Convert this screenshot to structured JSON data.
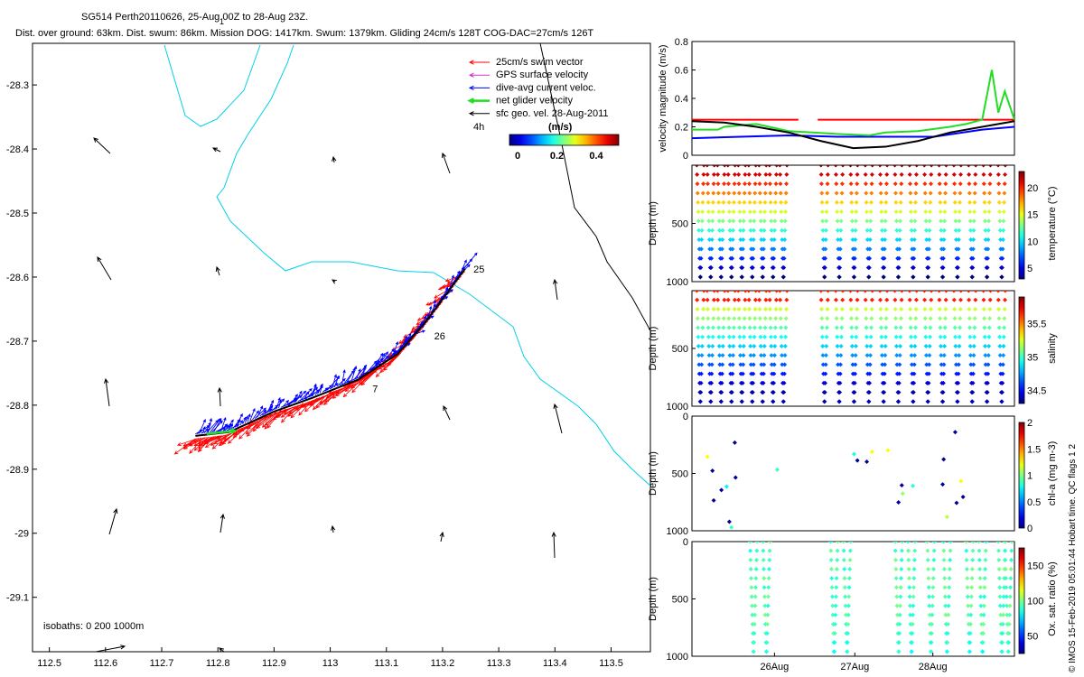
{
  "header": {
    "title_line": "SG514 Perth20110626, 25-Aug 00Z to 28-Aug 23Z.",
    "stats_line": "Dist. over ground: 63km. Dist. swum: 86km. Mission DOG: 1417km. Swum: 1379km. Gliding 24cm/s 128T COG-DAC=27cm/s 126T",
    "tick_mark": "1"
  },
  "colors": {
    "swim": "#ff0000",
    "gps": "#cc33cc",
    "dac": "#0000ff",
    "net": "#22dd22",
    "geo": "#000000",
    "isobath": "#00d0e8"
  },
  "map": {
    "x_ticks": [
      "112.5",
      "112.6",
      "112.7",
      "112.8",
      "112.9",
      "113",
      "113.1",
      "113.2",
      "113.3",
      "113.4",
      "113.5"
    ],
    "y_ticks": [
      "-28.3",
      "-28.4",
      "-28.5",
      "-28.6",
      "-28.7",
      "-28.8",
      "-28.9",
      "-29",
      "-29.1"
    ],
    "isobath_label": "isobaths: 0   200  1000m",
    "day_labels": [
      {
        "text": "25",
        "lon": 113.255,
        "lat": -28.593
      },
      {
        "text": "26",
        "lon": 113.185,
        "lat": -28.697
      },
      {
        "text": "7",
        "lon": 113.075,
        "lat": -28.78
      }
    ],
    "legend": {
      "items": [
        {
          "label": "25cm/s swim vector",
          "color_key": "swim"
        },
        {
          "label": "GPS surface velocity",
          "color_key": "gps"
        },
        {
          "label": "dive-avg current veloc.",
          "color_key": "dac"
        },
        {
          "label": "net glider velocity",
          "color_key": "net"
        },
        {
          "label": "sfc geo. vel. 28-Aug-2011",
          "color_key": "geo"
        }
      ],
      "interval_label": "4h",
      "units_label": "(m/s)",
      "colorbar_ticks": [
        "0",
        "0.2",
        "0.4"
      ]
    },
    "track_points": [
      {
        "lon": 112.76,
        "lat": -28.848
      },
      {
        "lon": 112.82,
        "lat": -28.842
      },
      {
        "lon": 112.9,
        "lat": -28.81
      },
      {
        "lon": 112.97,
        "lat": -28.788
      },
      {
        "lon": 113.05,
        "lat": -28.76
      },
      {
        "lon": 113.12,
        "lat": -28.72
      },
      {
        "lon": 113.17,
        "lat": -28.67
      },
      {
        "lon": 113.24,
        "lat": -28.587
      }
    ]
  },
  "chart_data": [
    {
      "type": "line",
      "ylabel": "velocity magnitude (m/s)",
      "ylim": [
        0,
        0.8
      ],
      "y_ticks": [
        "0",
        "0.2",
        "0.4",
        "0.6",
        "0.8"
      ],
      "series": [
        {
          "name": "25cm/s swim vector",
          "color": "#ff0000",
          "x": [
            0,
            0.33,
            0.39,
            1
          ],
          "y": [
            0.25,
            0.25,
            0.25,
            0.25
          ]
        },
        {
          "name": "dive-avg current veloc.",
          "color": "#0000ff",
          "x": [
            0,
            0.15,
            0.3,
            0.45,
            0.6,
            0.75,
            0.9,
            1
          ],
          "y": [
            0.12,
            0.13,
            0.14,
            0.13,
            0.13,
            0.13,
            0.18,
            0.2
          ]
        },
        {
          "name": "net glider velocity",
          "color": "#22dd22",
          "x": [
            0,
            0.08,
            0.1,
            0.2,
            0.3,
            0.45,
            0.55,
            0.6,
            0.7,
            0.8,
            0.85,
            0.9,
            0.93,
            0.95,
            0.97,
            1
          ],
          "y": [
            0.18,
            0.18,
            0.2,
            0.22,
            0.17,
            0.15,
            0.14,
            0.16,
            0.17,
            0.2,
            0.22,
            0.25,
            0.6,
            0.3,
            0.45,
            0.25
          ]
        },
        {
          "name": "sfc geo. vel. 28-Aug-2011",
          "color": "#000000",
          "x": [
            0,
            0.1,
            0.2,
            0.3,
            0.4,
            0.5,
            0.6,
            0.7,
            0.8,
            0.9,
            1
          ],
          "y": [
            0.24,
            0.23,
            0.2,
            0.16,
            0.1,
            0.05,
            0.06,
            0.1,
            0.16,
            0.2,
            0.24
          ]
        }
      ]
    },
    {
      "type": "scatter",
      "ylabel": "Depth (m)",
      "y_ticks": [
        "500",
        "1000"
      ],
      "cbar_label": "temperature (°C)",
      "cbar_ticks": [
        "5",
        "10",
        "15",
        "20"
      ],
      "value_range": [
        3,
        23
      ],
      "max_depth": 1000
    },
    {
      "type": "scatter",
      "ylabel": "Depth (m)",
      "y_ticks": [
        "500",
        "1000"
      ],
      "cbar_label": "salinity",
      "cbar_ticks": [
        "34.5",
        "35",
        "35.5"
      ],
      "value_range": [
        34.3,
        35.9
      ],
      "max_depth": 1000
    },
    {
      "type": "scatter",
      "ylabel": "Depth (m)",
      "y_ticks": [
        "0",
        "500",
        "1000"
      ],
      "cbar_label": "chl-a (mg m-3)",
      "cbar_ticks": [
        "0",
        "0.5",
        "1",
        "1.5",
        "2"
      ],
      "value_range": [
        0,
        2
      ],
      "max_depth": 1000
    },
    {
      "type": "scatter",
      "ylabel": "Depth (m)",
      "y_ticks": [
        "0",
        "500",
        "1000"
      ],
      "cbar_label": "Ox. sat. ratio (%)",
      "cbar_ticks": [
        "50",
        "100",
        "150"
      ],
      "value_range": [
        25,
        175
      ],
      "max_depth": 1000,
      "x_ticks": [
        "26Aug",
        "27Aug",
        "28Aug"
      ]
    }
  ],
  "side_note": "© IMOS 15-Feb-2019 05:01:44 Hobart time. QC flags 1  2"
}
